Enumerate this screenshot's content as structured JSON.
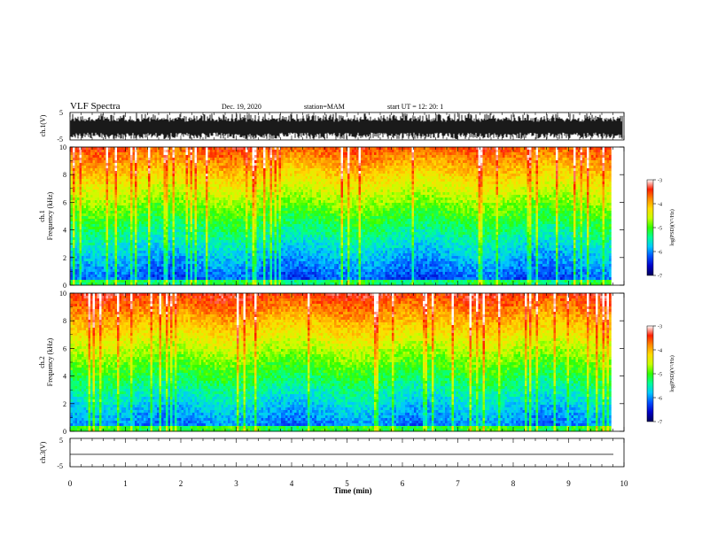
{
  "header": {
    "title": "VLF Spectra",
    "date": "Dec. 19, 2020",
    "station": "station=MAM",
    "start": "start  UT  =   12: 20: 1"
  },
  "chart_data": [
    {
      "type": "line",
      "name": "ch1-waveform",
      "ylabel": "ch.1(V)",
      "ylim": [
        -5,
        5
      ],
      "yticks": [
        "-5",
        "5"
      ],
      "xlim": [
        0,
        10
      ]
    },
    {
      "type": "heatmap",
      "name": "ch1-spectrogram",
      "ylabel_line1": "ch.1",
      "ylabel_line2": "Frequency (kHz)",
      "ylim": [
        0,
        10
      ],
      "yticks": [
        "0",
        "2",
        "4",
        "6",
        "8",
        "10"
      ],
      "xlim": [
        0,
        9.8
      ],
      "colorbar": {
        "label": "log(PSD)(V²/Hz)",
        "range": [
          -7,
          -3
        ],
        "ticks": [
          "-3",
          "-4",
          "-5",
          "-6",
          "-7"
        ]
      }
    },
    {
      "type": "heatmap",
      "name": "ch2-spectrogram",
      "ylabel_line1": "ch.2",
      "ylabel_line2": "Frequency (kHz)",
      "ylim": [
        0,
        10
      ],
      "yticks": [
        "0",
        "2",
        "4",
        "6",
        "8",
        "10"
      ],
      "xlim": [
        0,
        9.8
      ],
      "colorbar": {
        "label": "log(PSD)(V²/Hz)",
        "range": [
          -7,
          -3
        ],
        "ticks": [
          "-3",
          "-4",
          "-5",
          "-6",
          "-7"
        ]
      }
    },
    {
      "type": "line",
      "name": "ch3-waveform",
      "ylabel": "ch.3(V)",
      "ylim": [
        -5,
        5
      ],
      "yticks": [
        "-5",
        "5"
      ],
      "flat_value": 0
    }
  ],
  "xaxis": {
    "label": "Time (min)",
    "range": [
      0,
      10
    ],
    "ticks": [
      "0",
      "1",
      "2",
      "3",
      "4",
      "5",
      "6",
      "7",
      "8",
      "9",
      "10"
    ]
  },
  "colors": {
    "colormap": [
      "#00005a",
      "#0000c8",
      "#0050ff",
      "#00c8ff",
      "#00ff96",
      "#32ff00",
      "#c8ff00",
      "#ffdc00",
      "#ff8c00",
      "#ff1e00",
      "#ffffff"
    ],
    "axis": "#000000"
  }
}
